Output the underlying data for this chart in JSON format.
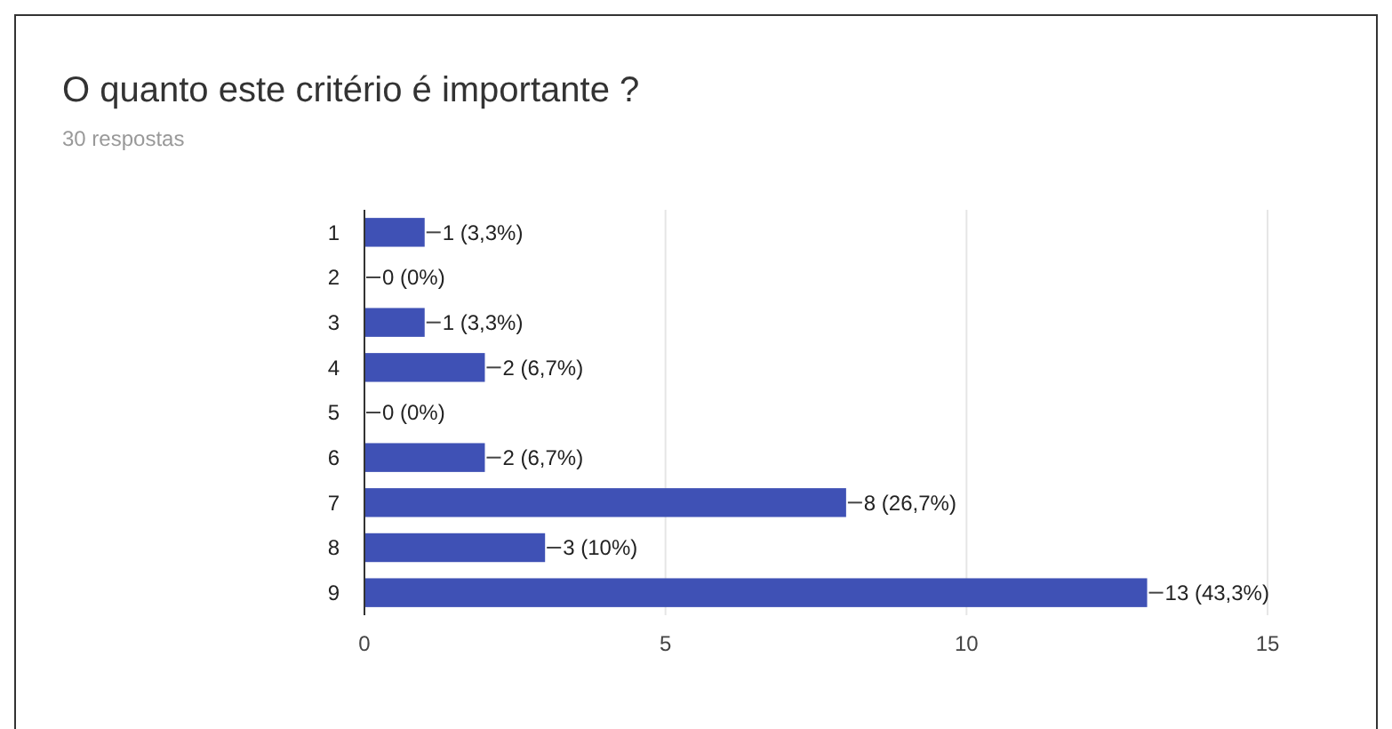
{
  "chart_data": {
    "type": "bar",
    "orientation": "horizontal",
    "title": "O quanto este critério é importante ?",
    "subtitle": "30 respostas",
    "categories": [
      "1",
      "2",
      "3",
      "4",
      "5",
      "6",
      "7",
      "8",
      "9"
    ],
    "values": [
      1,
      0,
      1,
      2,
      0,
      2,
      8,
      3,
      13
    ],
    "value_labels": [
      "1 (3,3%)",
      "0 (0%)",
      "1 (3,3%)",
      "2 (6,7%)",
      "0 (0%)",
      "2 (6,7%)",
      "8 (26,7%)",
      "3 (10%)",
      "13 (43,3%)"
    ],
    "color": "#3f51b5",
    "xlim": [
      0,
      15
    ],
    "xticks": [
      0,
      5,
      10,
      15
    ],
    "grid": "x"
  }
}
